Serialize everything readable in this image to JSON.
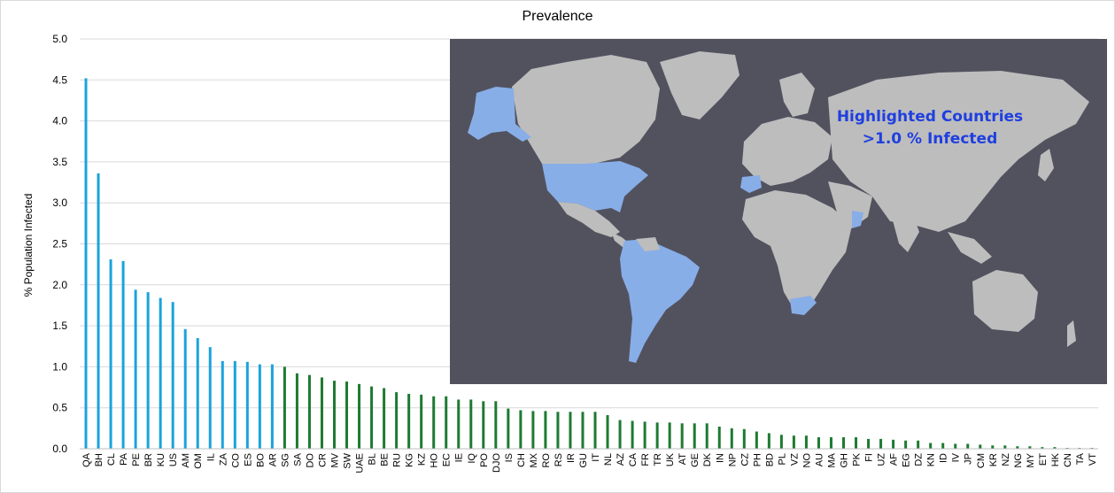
{
  "chart_data": {
    "type": "bar",
    "title": "Prevalence",
    "ylabel": "% Population Infected",
    "xlabel": "",
    "ylim": [
      0,
      5.0
    ],
    "yticks": [
      "0.0",
      "0.5",
      "1.0",
      "1.5",
      "2.0",
      "2.5",
      "3.0",
      "3.5",
      "4.0",
      "4.5",
      "5.0"
    ],
    "grid": true,
    "colors": {
      "above_threshold": "#1aa3dc",
      "below_threshold": "#1e7a32"
    },
    "threshold": 1.0,
    "categories": [
      "QA",
      "BH",
      "CL",
      "PA",
      "PE",
      "BR",
      "KU",
      "US",
      "AM",
      "OM",
      "IL",
      "ZA",
      "CO",
      "ES",
      "BO",
      "AR",
      "SG",
      "SA",
      "DO",
      "CR",
      "MV",
      "SW",
      "UAE",
      "BL",
      "BE",
      "RU",
      "KG",
      "KZ",
      "HO",
      "EC",
      "IE",
      "IQ",
      "PO",
      "DJO",
      "IS",
      "CH",
      "MX",
      "RO",
      "RS",
      "IR",
      "GU",
      "IT",
      "NL",
      "AZ",
      "CA",
      "FR",
      "TR",
      "UK",
      "AT",
      "GE",
      "DK",
      "IN",
      "NP",
      "CZ",
      "PH",
      "BD",
      "PL",
      "VZ",
      "NO",
      "AU",
      "MA",
      "GH",
      "PK",
      "FI",
      "UZ",
      "AF",
      "EG",
      "DZ",
      "KN",
      "ID",
      "IV",
      "JP",
      "CM",
      "KR",
      "NZ",
      "NG",
      "MY",
      "ET",
      "HK",
      "CN",
      "TA",
      "VT"
    ],
    "values": [
      4.52,
      3.36,
      2.31,
      2.29,
      1.94,
      1.91,
      1.84,
      1.79,
      1.46,
      1.35,
      1.24,
      1.07,
      1.07,
      1.06,
      1.03,
      1.03,
      1.0,
      0.92,
      0.9,
      0.87,
      0.83,
      0.82,
      0.79,
      0.76,
      0.74,
      0.69,
      0.67,
      0.66,
      0.64,
      0.64,
      0.6,
      0.6,
      0.58,
      0.58,
      0.49,
      0.47,
      0.46,
      0.46,
      0.45,
      0.45,
      0.45,
      0.45,
      0.41,
      0.35,
      0.34,
      0.33,
      0.32,
      0.32,
      0.31,
      0.31,
      0.31,
      0.27,
      0.25,
      0.24,
      0.21,
      0.19,
      0.17,
      0.16,
      0.16,
      0.14,
      0.14,
      0.14,
      0.14,
      0.12,
      0.12,
      0.11,
      0.1,
      0.1,
      0.07,
      0.07,
      0.06,
      0.06,
      0.05,
      0.04,
      0.04,
      0.03,
      0.03,
      0.02,
      0.02,
      0.01,
      0.01,
      0.01
    ]
  },
  "map_inset": {
    "annotation_line1": "Highlighted  Countries",
    "annotation_line2": ">1.0 % Infected",
    "colors": {
      "ocean": "#52525f",
      "land": "#bdbdbd",
      "highlighted": "#88aee8",
      "annotation": "#1f3fe0"
    }
  }
}
